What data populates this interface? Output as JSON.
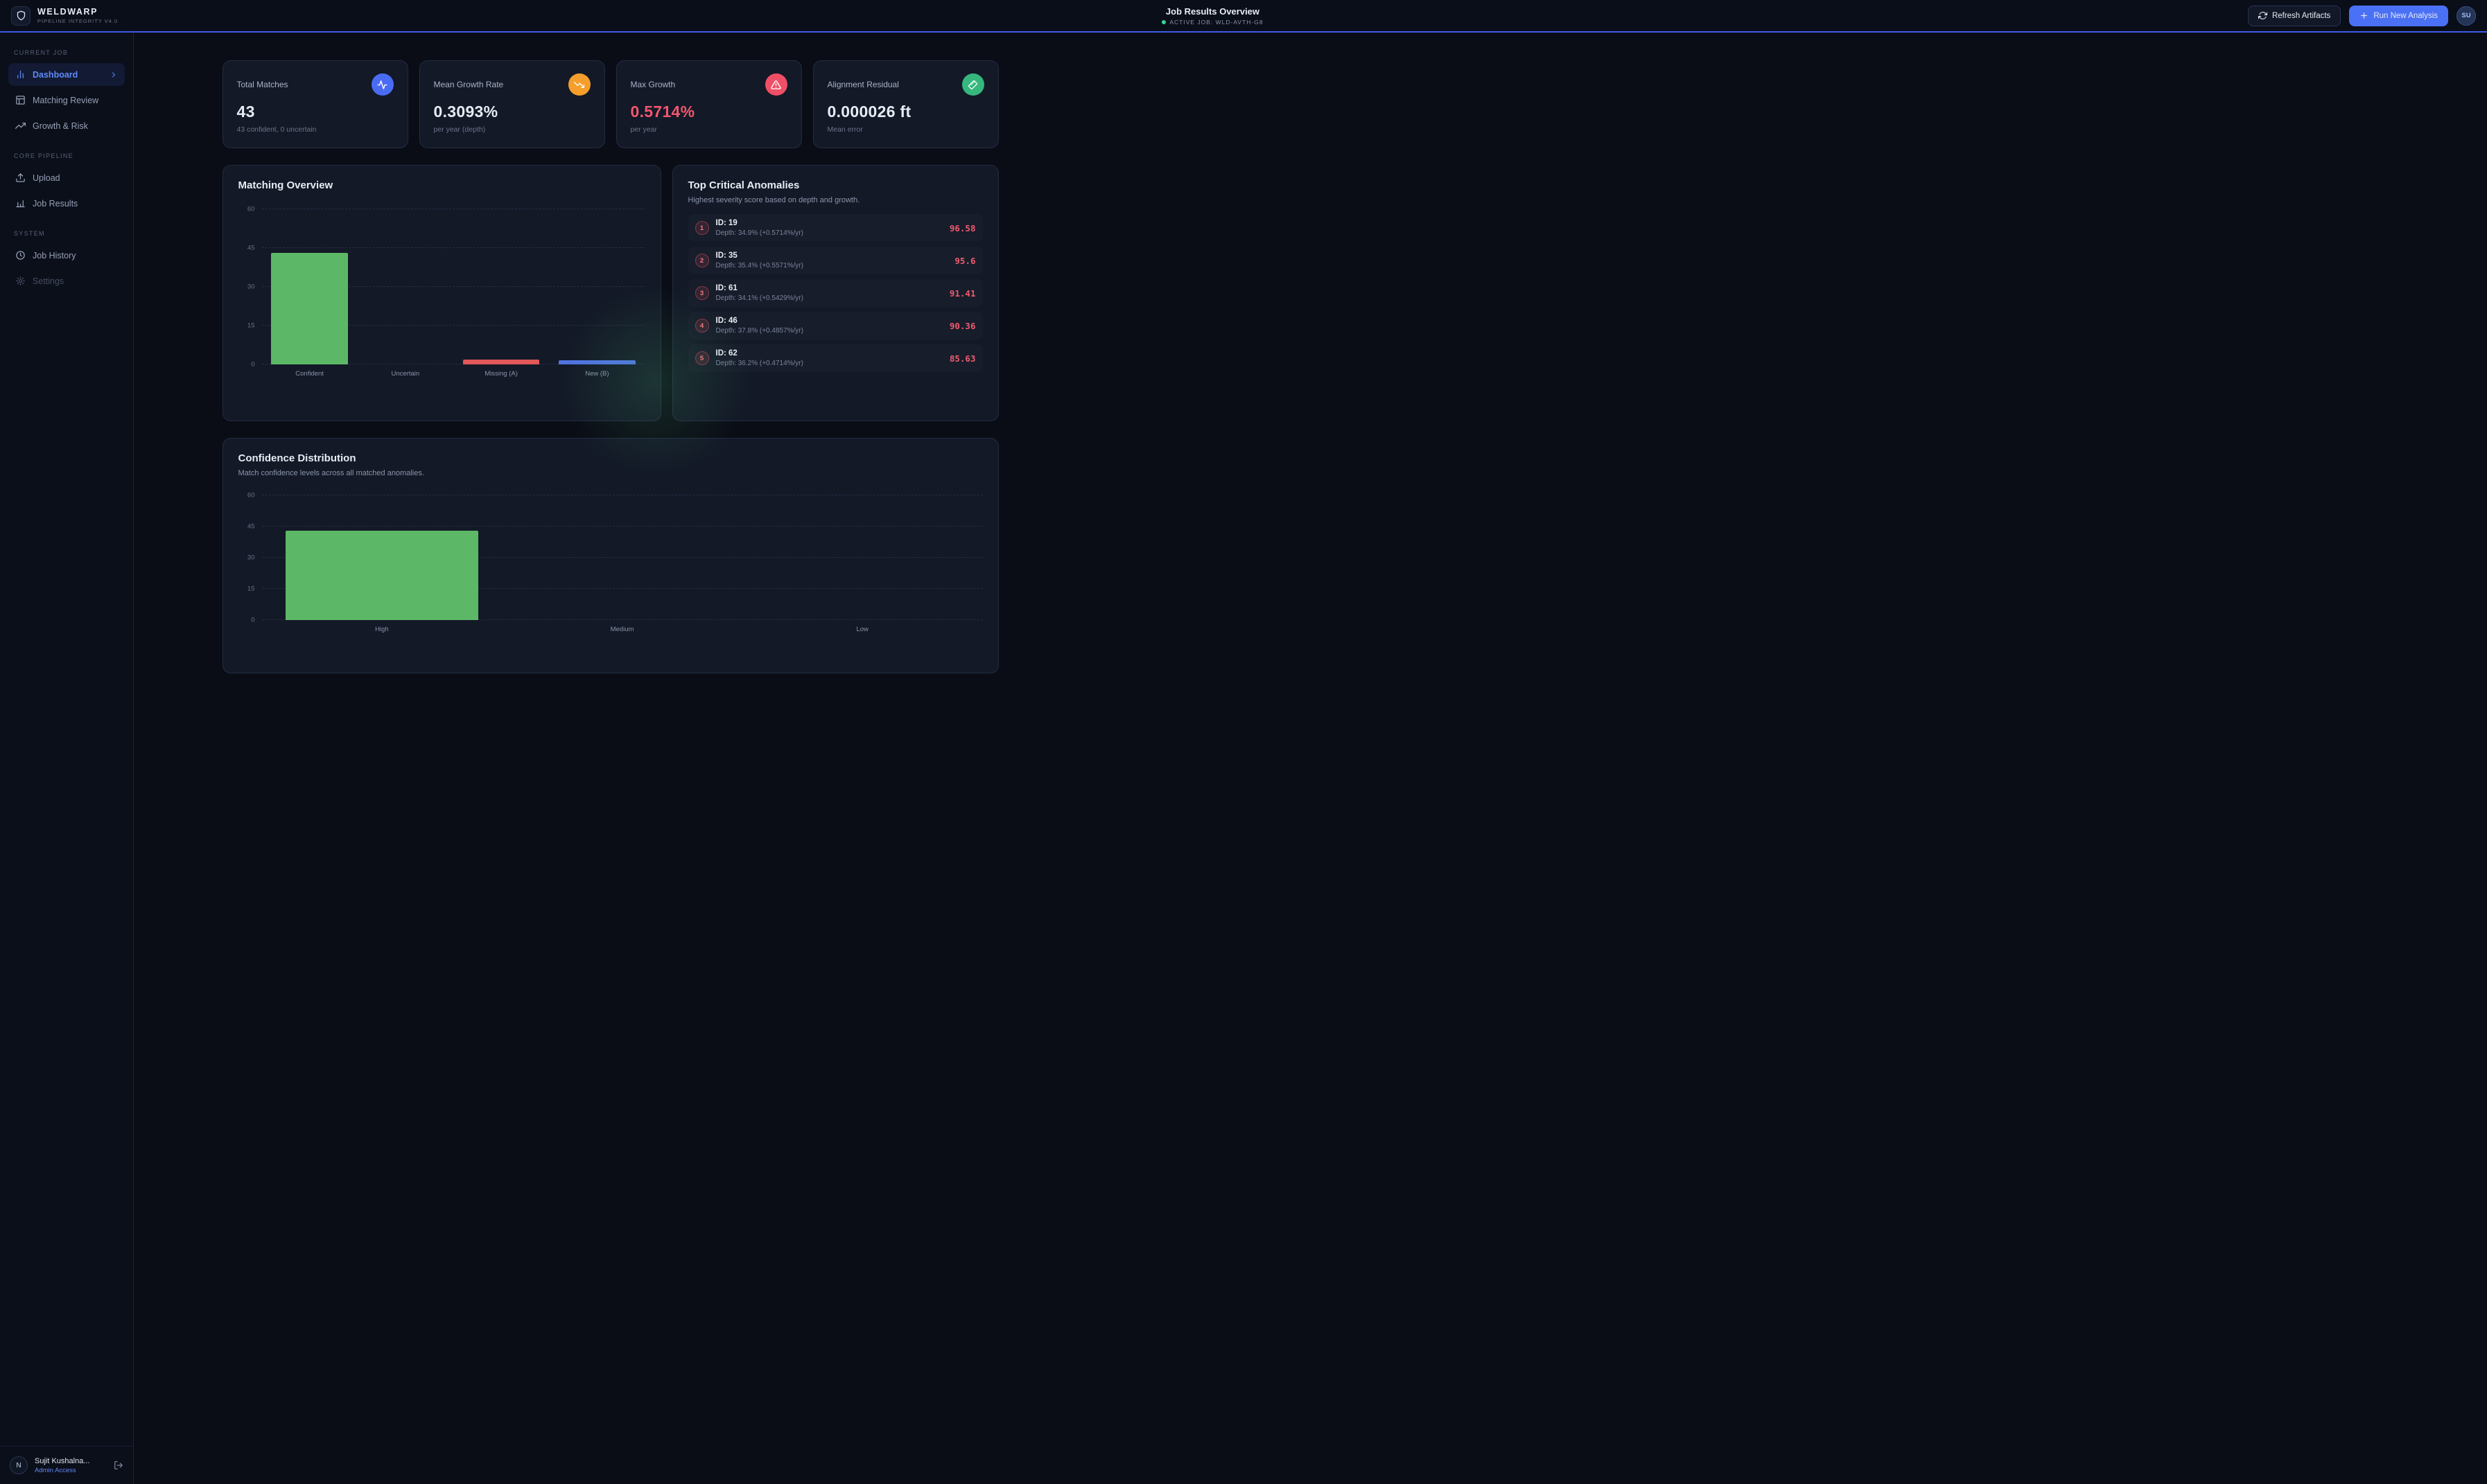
{
  "header": {
    "brand": "WELDWARP",
    "brand_subtitle": "PIPELINE INTEGRITY V4.0",
    "page_title": "Job Results Overview",
    "active_job_label": "ACTIVE JOB: WLD-AVTH-G8",
    "refresh_button": "Refresh Artifacts",
    "run_button": "Run New Analysis",
    "user_initials": "SU"
  },
  "sidebar": {
    "section_current_job": "CURRENT JOB",
    "section_core_pipeline": "CORE PIPELINE",
    "section_system": "SYSTEM",
    "items": {
      "dashboard": "Dashboard",
      "matching_review": "Matching Review",
      "growth_risk": "Growth & Risk",
      "upload": "Upload",
      "job_results": "Job Results",
      "job_history": "Job History",
      "settings": "Settings"
    },
    "user": {
      "initial": "N",
      "name": "Sujit Kushalna...",
      "role": "Admin Access"
    }
  },
  "stats": [
    {
      "label": "Total Matches",
      "value": "43",
      "sub": "43 confident, 0 uncertain"
    },
    {
      "label": "Mean Growth Rate",
      "value": "0.3093%",
      "sub": "per year (depth)"
    },
    {
      "label": "Max Growth",
      "value": "0.5714%",
      "sub": "per year"
    },
    {
      "label": "Alignment Residual",
      "value": "0.000026 ft",
      "sub": "Mean error"
    }
  ],
  "anomalies": {
    "title": "Top Critical Anomalies",
    "subtitle": "Highest severity score based on depth and growth.",
    "rows": [
      {
        "rank": "1",
        "id": "ID: 19",
        "detail": "Depth: 34.9% (+0.5714%/yr)",
        "score": "96.58"
      },
      {
        "rank": "2",
        "id": "ID: 35",
        "detail": "Depth: 35.4% (+0.5571%/yr)",
        "score": "95.6"
      },
      {
        "rank": "3",
        "id": "ID: 61",
        "detail": "Depth: 34.1% (+0.5429%/yr)",
        "score": "91.41"
      },
      {
        "rank": "4",
        "id": "ID: 46",
        "detail": "Depth: 37.8% (+0.4857%/yr)",
        "score": "90.36"
      },
      {
        "rank": "5",
        "id": "ID: 62",
        "detail": "Depth: 36.2% (+0.4714%/yr)",
        "score": "85.63"
      }
    ]
  },
  "charts": {
    "matching_title": "Matching Overview",
    "confidence_title": "Confidence Distribution",
    "confidence_subtitle": "Match confidence levels across all matched anomalies."
  },
  "chart_data": [
    {
      "type": "bar",
      "title": "Matching Overview",
      "categories": [
        "Confident",
        "Uncertain",
        "Missing (A)",
        "New (B)"
      ],
      "values": [
        43,
        0,
        2,
        1.5
      ],
      "colors": [
        "#5cb866",
        "#5cb866",
        "#e25757",
        "#4f73e0"
      ],
      "xlabel": "",
      "ylabel": "",
      "ylim": [
        0,
        60
      ],
      "yticks": [
        0,
        15,
        30,
        45,
        60
      ],
      "grid": "dashed horizontal",
      "legend": "none"
    },
    {
      "type": "bar",
      "title": "Confidence Distribution",
      "subtitle": "Match confidence levels across all matched anomalies.",
      "categories": [
        "High",
        "Medium",
        "Low"
      ],
      "values": [
        43,
        0,
        0
      ],
      "colors": [
        "#5cb866",
        "#5cb866",
        "#5cb866"
      ],
      "xlabel": "",
      "ylabel": "",
      "ylim": [
        0,
        60
      ],
      "yticks": [
        0,
        15,
        30,
        45,
        60
      ],
      "grid": "dashed horizontal",
      "legend": "none"
    }
  ],
  "colors": {
    "accent_blue": "#4a70f5",
    "header_underline": "#3d5bea",
    "status_green": "#34d399",
    "bar_green": "#5cb866",
    "bar_red": "#e25757",
    "bar_blue": "#4f73e0",
    "value_red": "#f2566f",
    "score_red": "#ef5a6d",
    "icon_blue": "#4a6cf5",
    "icon_orange": "#f59e2b",
    "icon_red": "#ef4f66",
    "icon_green": "#35b77d"
  }
}
